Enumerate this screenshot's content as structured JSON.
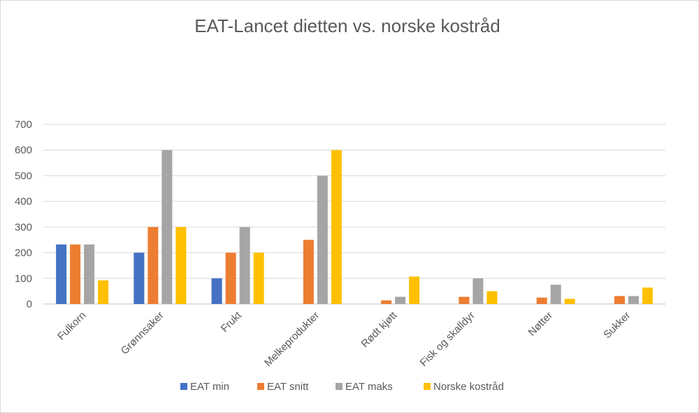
{
  "chart_data": {
    "type": "bar",
    "title": "EAT-Lancet dietten vs. norske kostråd",
    "xlabel": "",
    "ylabel": "",
    "ylim": [
      0,
      700
    ],
    "yticks": [
      "0",
      "100",
      "200",
      "300",
      "400",
      "500",
      "600",
      "700"
    ],
    "grid": true,
    "legend_position": "bottom",
    "categories": [
      "Fulkorn",
      "Grønnsaker",
      "Frukt",
      "Melkeprodukter",
      "Rødt kjøtt",
      "Fisk og skalldyr",
      "Nøtter",
      "Sukker"
    ],
    "series": [
      {
        "name": "EAT min",
        "color": "#4472c4",
        "values": [
          232,
          200,
          100,
          0,
          0,
          0,
          0,
          0
        ]
      },
      {
        "name": "EAT snitt",
        "color": "#ed7d31",
        "values": [
          232,
          300,
          200,
          250,
          14,
          28,
          25,
          31
        ]
      },
      {
        "name": "EAT maks",
        "color": "#a5a5a5",
        "values": [
          232,
          600,
          300,
          500,
          28,
          100,
          75,
          31
        ]
      },
      {
        "name": "Norske kostråd",
        "color": "#ffc000",
        "values": [
          92,
          300,
          200,
          600,
          107,
          50,
          20,
          64
        ]
      }
    ]
  }
}
